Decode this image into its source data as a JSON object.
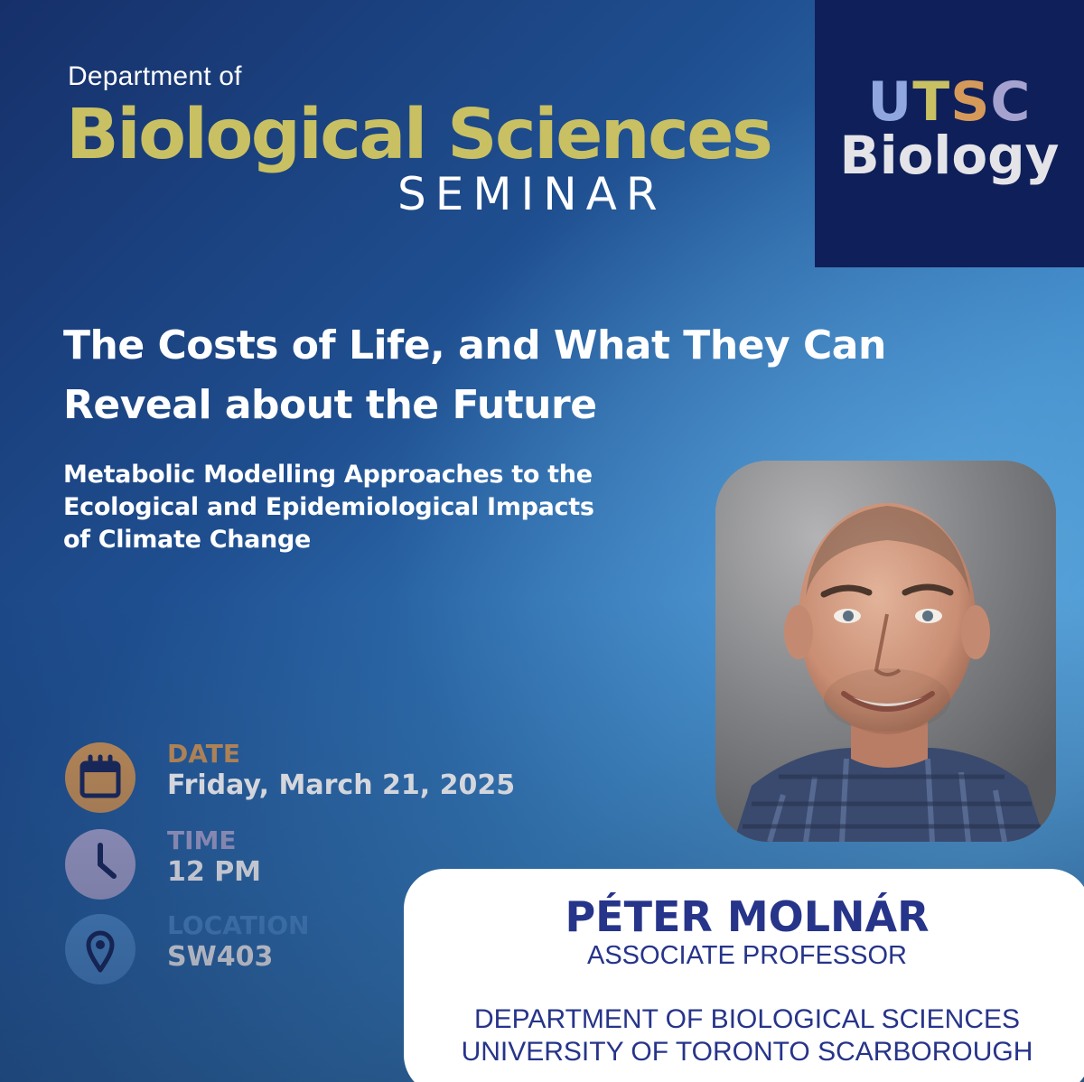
{
  "header": {
    "dept_prefix": "Department of",
    "dept_name": "Biological Sciences",
    "event_type": "SEMINAR"
  },
  "logo": {
    "letters": [
      "U",
      "T",
      "S",
      "C"
    ],
    "letter_colors": [
      "#8fa6df",
      "#c8c062",
      "#d59a5a",
      "#a5a2cf"
    ],
    "subtitle": "Biology",
    "background_color": "#0f1f5a"
  },
  "talk": {
    "title_line1": "The Costs of Life, and What They Can",
    "title_line2": "Reveal about the Future",
    "subtitle_line1": "Metabolic Modelling Approaches to the",
    "subtitle_line2": "Ecological and Epidemiological Impacts",
    "subtitle_line3": "of Climate Change"
  },
  "details": {
    "date": {
      "label": "DATE",
      "value": "Friday, March 21, 2025",
      "icon": "calendar-icon",
      "color": "#c9935a"
    },
    "time": {
      "label": "TIME",
      "value": "12 PM",
      "icon": "clock-icon",
      "color": "#a8a7d2"
    },
    "location": {
      "label": "LOCATION",
      "value": "SW403",
      "icon": "location-pin-icon",
      "color": "#4f8fcf"
    }
  },
  "speaker": {
    "name": "PÉTER MOLNÁR",
    "role": "ASSOCIATE PROFESSOR",
    "department": "DEPARTMENT OF BIOLOGICAL SCIENCES",
    "university": "UNIVERSITY OF TORONTO SCARBOROUGH"
  },
  "colors": {
    "accent_olive": "#c8c062",
    "navy": "#26348a",
    "background_dark": "#16306a",
    "background_light": "#4c9ad3"
  }
}
